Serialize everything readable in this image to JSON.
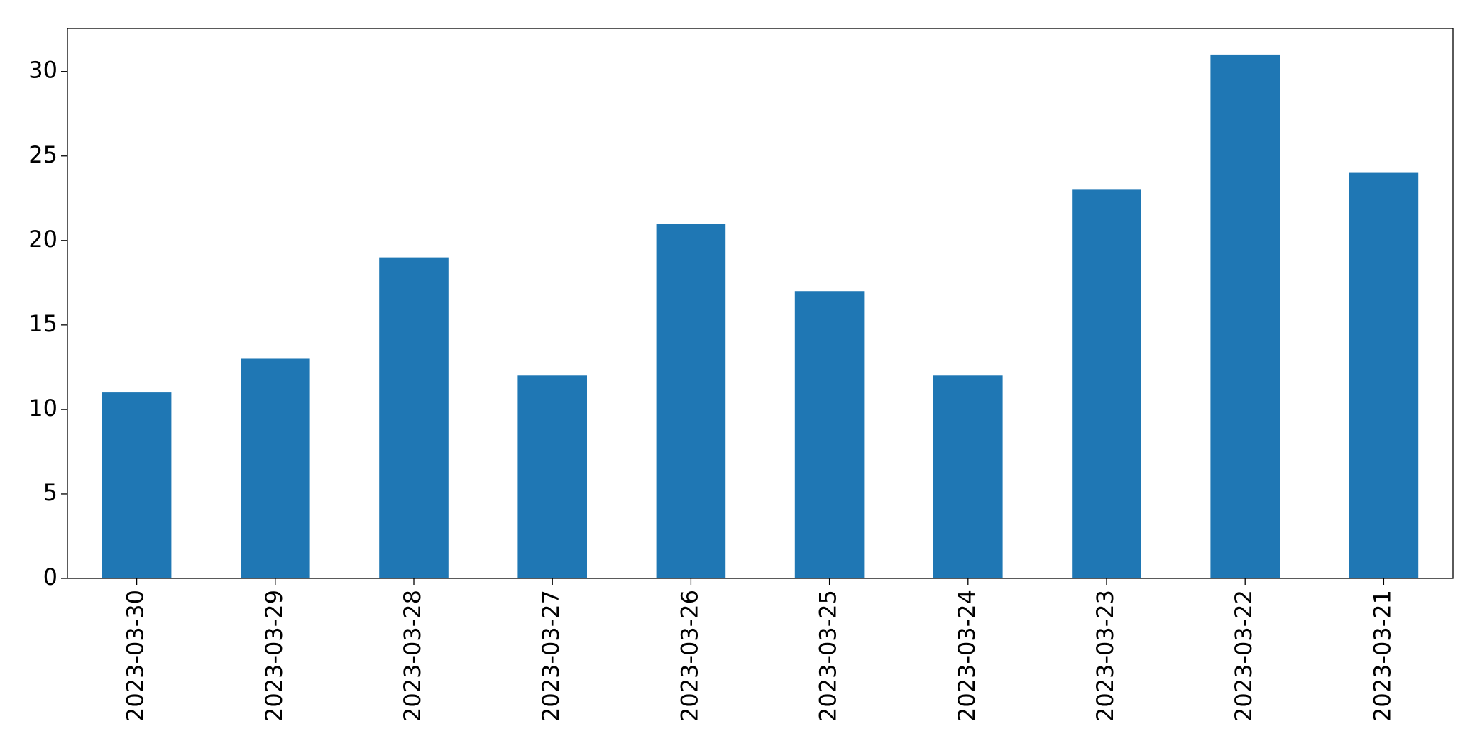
{
  "chart_data": {
    "type": "bar",
    "categories": [
      "2023-03-30",
      "2023-03-29",
      "2023-03-28",
      "2023-03-27",
      "2023-03-26",
      "2023-03-25",
      "2023-03-24",
      "2023-03-23",
      "2023-03-22",
      "2023-03-21"
    ],
    "values": [
      11,
      13,
      19,
      12,
      21,
      17,
      12,
      23,
      31,
      24
    ],
    "color": "#1f77b4",
    "ylim": [
      0,
      32.55
    ],
    "yticks": [
      0,
      5,
      10,
      15,
      20,
      25,
      30
    ],
    "grid": false
  }
}
